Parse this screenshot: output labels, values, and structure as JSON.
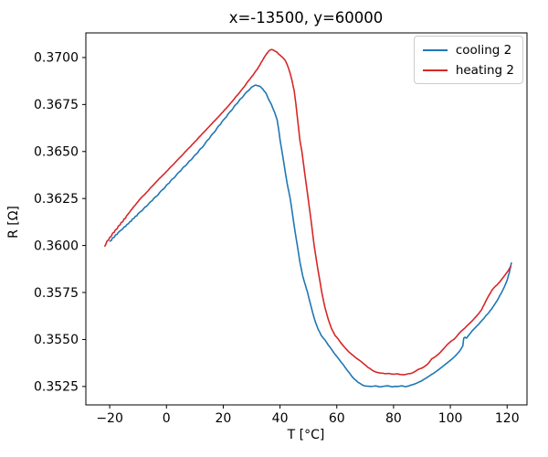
{
  "chart_data": {
    "type": "line",
    "title": "x=-13500, y=60000",
    "xlabel": "T [°C]",
    "ylabel": "R [Ω]",
    "xlim": [
      -28.4,
      127.0
    ],
    "ylim": [
      0.35152,
      0.37131
    ],
    "grid": false,
    "legend_position": "upper right",
    "frame_color": "#000000",
    "legend_border_color": "#cccccc",
    "xtick_values": [
      -20,
      0,
      20,
      40,
      60,
      80,
      100,
      120
    ],
    "xtick_labels": [
      "−20",
      "0",
      "20",
      "40",
      "60",
      "80",
      "100",
      "120"
    ],
    "ytick_values": [
      0.3525,
      0.355,
      0.3575,
      0.36,
      0.3625,
      0.365,
      0.3675,
      0.37
    ],
    "ytick_labels": [
      "0.3525",
      "0.3550",
      "0.3575",
      "0.3600",
      "0.3625",
      "0.3650",
      "0.3675",
      "0.3700"
    ],
    "series": [
      {
        "name": "cooling 2",
        "color": "#1f77b4",
        "noise": 1.8e-05,
        "points": [
          [
            -19.9,
            0.36023
          ],
          [
            -19.4,
            0.36027
          ],
          [
            -19.0,
            0.3604
          ],
          [
            -18.4,
            0.36043
          ],
          [
            -18.0,
            0.36056
          ],
          [
            -17.4,
            0.36059
          ],
          [
            -17.0,
            0.36069
          ],
          [
            -16.4,
            0.36077
          ],
          [
            -16.0,
            0.36081
          ],
          [
            -15.4,
            0.36089
          ],
          [
            -15.0,
            0.36097
          ],
          [
            -14.4,
            0.36101
          ],
          [
            -14.0,
            0.36111
          ],
          [
            -13.4,
            0.36116
          ],
          [
            -13.0,
            0.36125
          ],
          [
            -12.4,
            0.36129
          ],
          [
            -12.0,
            0.36141
          ],
          [
            -11.4,
            0.36146
          ],
          [
            -11.0,
            0.36155
          ],
          [
            -10.4,
            0.36158
          ],
          [
            -10.0,
            0.36169
          ],
          [
            -9.0,
            0.36181
          ],
          [
            -8.0,
            0.36197
          ],
          [
            -7.0,
            0.36209
          ],
          [
            -6.0,
            0.36227
          ],
          [
            -5.0,
            0.36239
          ],
          [
            -4.0,
            0.36257
          ],
          [
            -3.0,
            0.36269
          ],
          [
            -2.0,
            0.36289
          ],
          [
            -1.0,
            0.36301
          ],
          [
            0.0,
            0.36321
          ],
          [
            1.0,
            0.36333
          ],
          [
            2.0,
            0.36353
          ],
          [
            3.0,
            0.36365
          ],
          [
            4.0,
            0.36385
          ],
          [
            5.0,
            0.36397
          ],
          [
            6.0,
            0.36417
          ],
          [
            7.0,
            0.36429
          ],
          [
            8.0,
            0.36449
          ],
          [
            9.0,
            0.36461
          ],
          [
            10.0,
            0.36481
          ],
          [
            11.0,
            0.36494
          ],
          [
            12.0,
            0.36515
          ],
          [
            13.0,
            0.36529
          ],
          [
            14.0,
            0.36552
          ],
          [
            15.0,
            0.36567
          ],
          [
            16.0,
            0.3659
          ],
          [
            17.0,
            0.36605
          ],
          [
            18.0,
            0.36629
          ],
          [
            19.0,
            0.36644
          ],
          [
            20.0,
            0.36667
          ],
          [
            21.0,
            0.36682
          ],
          [
            22.0,
            0.36705
          ],
          [
            23.0,
            0.3672
          ],
          [
            24.0,
            0.36743
          ],
          [
            25.0,
            0.36757
          ],
          [
            26.0,
            0.36779
          ],
          [
            27.0,
            0.36793
          ],
          [
            28.0,
            0.36813
          ],
          [
            29.0,
            0.36825
          ],
          [
            30.0,
            0.36843
          ],
          [
            30.8,
            0.36849
          ],
          [
            31.5,
            0.36853
          ],
          [
            32.2,
            0.3685
          ],
          [
            33.0,
            0.36846
          ],
          [
            34.0,
            0.36831
          ],
          [
            35.0,
            0.36812
          ],
          [
            36.0,
            0.36777
          ],
          [
            37.0,
            0.36749
          ],
          [
            38.0,
            0.36712
          ],
          [
            39.0,
            0.36667
          ],
          [
            39.5,
            0.3662
          ],
          [
            40.0,
            0.36563
          ],
          [
            40.7,
            0.365
          ],
          [
            41.5,
            0.36424
          ],
          [
            42.5,
            0.36331
          ],
          [
            43.6,
            0.36249
          ],
          [
            44.5,
            0.36156
          ],
          [
            45.3,
            0.36074
          ],
          [
            46.1,
            0.36
          ],
          [
            47.0,
            0.35913
          ],
          [
            48.0,
            0.35838
          ],
          [
            49.0,
            0.35786
          ],
          [
            49.7,
            0.35751
          ],
          [
            50.5,
            0.35702
          ],
          [
            51.5,
            0.35643
          ],
          [
            52.5,
            0.35592
          ],
          [
            53.5,
            0.35552
          ],
          [
            54.5,
            0.35522
          ],
          [
            55.8,
            0.35498
          ],
          [
            57.0,
            0.3547
          ],
          [
            58.5,
            0.3544
          ],
          [
            60.0,
            0.3541
          ],
          [
            61.5,
            0.3538
          ],
          [
            63.0,
            0.3535
          ],
          [
            64.5,
            0.35321
          ],
          [
            66.0,
            0.35292
          ],
          [
            67.5,
            0.35272
          ],
          [
            69.0,
            0.35258
          ],
          [
            70.5,
            0.35252
          ],
          [
            72.0,
            0.3525
          ],
          [
            73.5,
            0.35253
          ],
          [
            75.0,
            0.35248
          ],
          [
            76.5,
            0.35251
          ],
          [
            78.0,
            0.35254
          ],
          [
            79.5,
            0.35248
          ],
          [
            81.0,
            0.35251
          ],
          [
            82.5,
            0.35253
          ],
          [
            84.0,
            0.35249
          ],
          [
            85.0,
            0.35252
          ],
          [
            86.0,
            0.35257
          ],
          [
            87.5,
            0.35264
          ],
          [
            89.0,
            0.35274
          ],
          [
            90.5,
            0.35286
          ],
          [
            92.0,
            0.353
          ],
          [
            93.5,
            0.35315
          ],
          [
            95.0,
            0.3533
          ],
          [
            96.5,
            0.35347
          ],
          [
            98.0,
            0.35365
          ],
          [
            99.5,
            0.35383
          ],
          [
            101.0,
            0.35402
          ],
          [
            102.5,
            0.35425
          ],
          [
            103.8,
            0.3545
          ],
          [
            104.4,
            0.35466
          ],
          [
            104.7,
            0.35506
          ],
          [
            105.2,
            0.35512
          ],
          [
            105.7,
            0.35507
          ],
          [
            106.4,
            0.35521
          ],
          [
            107.2,
            0.35536
          ],
          [
            108.0,
            0.35551
          ],
          [
            109.0,
            0.35566
          ],
          [
            110.0,
            0.35581
          ],
          [
            111.0,
            0.35599
          ],
          [
            112.0,
            0.35616
          ],
          [
            113.0,
            0.35634
          ],
          [
            114.0,
            0.35653
          ],
          [
            115.0,
            0.35673
          ],
          [
            116.0,
            0.35696
          ],
          [
            117.0,
            0.35721
          ],
          [
            118.0,
            0.35748
          ],
          [
            119.0,
            0.35779
          ],
          [
            120.0,
            0.35815
          ],
          [
            120.7,
            0.35852
          ],
          [
            121.2,
            0.35885
          ],
          [
            121.5,
            0.35907
          ]
        ]
      },
      {
        "name": "heating 2",
        "color": "#d62728",
        "noise": 1.5e-05,
        "points": [
          [
            -21.7,
            0.35997
          ],
          [
            -21.4,
            0.36006
          ],
          [
            -21.0,
            0.36022
          ],
          [
            -20.4,
            0.36029
          ],
          [
            -20.0,
            0.36043
          ],
          [
            -19.4,
            0.36051
          ],
          [
            -19.0,
            0.36065
          ],
          [
            -18.4,
            0.3607
          ],
          [
            -18.0,
            0.36083
          ],
          [
            -17.4,
            0.36089
          ],
          [
            -17.0,
            0.36102
          ],
          [
            -16.4,
            0.36109
          ],
          [
            -16.0,
            0.36121
          ],
          [
            -15.4,
            0.36127
          ],
          [
            -15.0,
            0.3614
          ],
          [
            -14.4,
            0.36146
          ],
          [
            -14.0,
            0.36159
          ],
          [
            -13.0,
            0.36177
          ],
          [
            -12.0,
            0.36197
          ],
          [
            -11.0,
            0.36215
          ],
          [
            -10.0,
            0.36234
          ],
          [
            -9.0,
            0.36252
          ],
          [
            -8.0,
            0.36267
          ],
          [
            -7.0,
            0.36283
          ],
          [
            -6.0,
            0.363
          ],
          [
            -5.0,
            0.36316
          ],
          [
            -4.0,
            0.36332
          ],
          [
            -3.0,
            0.36348
          ],
          [
            -2.0,
            0.36363
          ],
          [
            -1.0,
            0.36378
          ],
          [
            0.0,
            0.36394
          ],
          [
            1.0,
            0.3641
          ],
          [
            2.0,
            0.36425
          ],
          [
            3.0,
            0.36441
          ],
          [
            4.0,
            0.36457
          ],
          [
            5.0,
            0.36472
          ],
          [
            6.0,
            0.36488
          ],
          [
            7.0,
            0.36504
          ],
          [
            8.0,
            0.3652
          ],
          [
            9.0,
            0.36536
          ],
          [
            10.0,
            0.36552
          ],
          [
            11.0,
            0.36568
          ],
          [
            12.0,
            0.36584
          ],
          [
            13.0,
            0.366
          ],
          [
            14.0,
            0.36616
          ],
          [
            15.0,
            0.36632
          ],
          [
            16.0,
            0.36648
          ],
          [
            17.0,
            0.36664
          ],
          [
            18.0,
            0.3668
          ],
          [
            19.0,
            0.36696
          ],
          [
            20.0,
            0.36712
          ],
          [
            21.0,
            0.36729
          ],
          [
            22.0,
            0.36746
          ],
          [
            23.0,
            0.36764
          ],
          [
            24.0,
            0.36782
          ],
          [
            25.0,
            0.368
          ],
          [
            26.0,
            0.36819
          ],
          [
            27.0,
            0.36838
          ],
          [
            28.0,
            0.36858
          ],
          [
            29.0,
            0.36878
          ],
          [
            30.0,
            0.36898
          ],
          [
            31.0,
            0.36918
          ],
          [
            32.0,
            0.36938
          ],
          [
            32.8,
            0.36958
          ],
          [
            33.6,
            0.36979
          ],
          [
            34.4,
            0.37
          ],
          [
            35.2,
            0.37019
          ],
          [
            36.0,
            0.37034
          ],
          [
            36.8,
            0.37042
          ],
          [
            37.6,
            0.3704
          ],
          [
            38.4,
            0.37033
          ],
          [
            39.2,
            0.37024
          ],
          [
            40.0,
            0.37013
          ],
          [
            40.9,
            0.37001
          ],
          [
            41.8,
            0.36985
          ],
          [
            42.6,
            0.36959
          ],
          [
            43.4,
            0.36924
          ],
          [
            44.2,
            0.36879
          ],
          [
            45.0,
            0.36822
          ],
          [
            45.6,
            0.36752
          ],
          [
            46.3,
            0.36656
          ],
          [
            47.0,
            0.3656
          ],
          [
            47.7,
            0.365
          ],
          [
            48.8,
            0.36373
          ],
          [
            49.9,
            0.36251
          ],
          [
            51.0,
            0.36126
          ],
          [
            52.0,
            0.36002
          ],
          [
            53.3,
            0.35876
          ],
          [
            54.7,
            0.35752
          ],
          [
            55.8,
            0.35672
          ],
          [
            57.0,
            0.35607
          ],
          [
            58.2,
            0.35556
          ],
          [
            59.4,
            0.35521
          ],
          [
            60.6,
            0.355
          ],
          [
            62.0,
            0.35472
          ],
          [
            63.5,
            0.35446
          ],
          [
            65.0,
            0.35424
          ],
          [
            66.5,
            0.35405
          ],
          [
            68.0,
            0.35389
          ],
          [
            69.5,
            0.35371
          ],
          [
            71.0,
            0.35351
          ],
          [
            72.5,
            0.35336
          ],
          [
            74.0,
            0.35326
          ],
          [
            75.5,
            0.35321
          ],
          [
            77.0,
            0.35318
          ],
          [
            78.5,
            0.35319
          ],
          [
            80.0,
            0.35315
          ],
          [
            81.5,
            0.35317
          ],
          [
            83.0,
            0.35313
          ],
          [
            84.5,
            0.35315
          ],
          [
            86.0,
            0.35319
          ],
          [
            87.5,
            0.35329
          ],
          [
            89.0,
            0.35343
          ],
          [
            90.5,
            0.35352
          ],
          [
            92.0,
            0.35369
          ],
          [
            93.5,
            0.35398
          ],
          [
            95.0,
            0.35412
          ],
          [
            96.5,
            0.35432
          ],
          [
            98.0,
            0.35457
          ],
          [
            99.5,
            0.35481
          ],
          [
            101.3,
            0.35501
          ],
          [
            103.0,
            0.35531
          ],
          [
            105.0,
            0.35559
          ],
          [
            107.0,
            0.35589
          ],
          [
            109.0,
            0.35621
          ],
          [
            111.0,
            0.35658
          ],
          [
            112.0,
            0.35688
          ],
          [
            113.0,
            0.35719
          ],
          [
            114.2,
            0.3575
          ],
          [
            115.0,
            0.35769
          ],
          [
            116.0,
            0.35785
          ],
          [
            117.0,
            0.358
          ],
          [
            118.0,
            0.35818
          ],
          [
            119.0,
            0.35838
          ],
          [
            120.0,
            0.35858
          ],
          [
            120.7,
            0.35874
          ],
          [
            121.3,
            0.35889
          ]
        ]
      }
    ]
  }
}
